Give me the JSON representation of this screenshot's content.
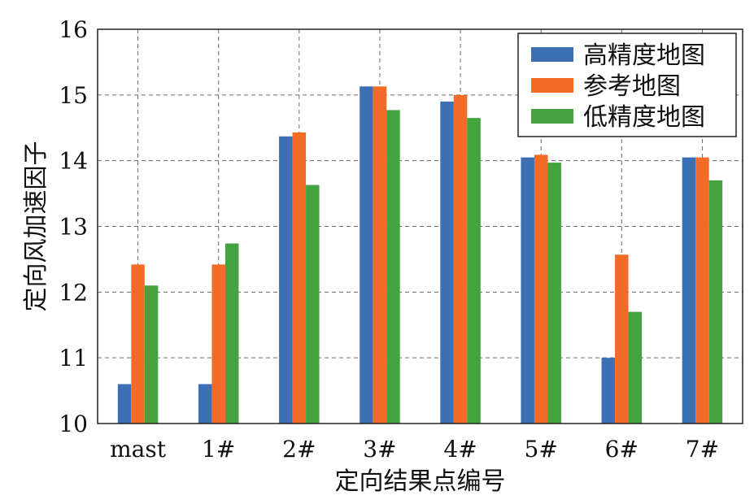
{
  "chart_data": {
    "type": "bar",
    "title": "",
    "xlabel": "定向结果点编号",
    "ylabel": "定向风加速因子",
    "categories": [
      "mast",
      "1#",
      "2#",
      "3#",
      "4#",
      "5#",
      "6#",
      "7#"
    ],
    "ylim": [
      10,
      16
    ],
    "yticks": [
      10,
      11,
      12,
      13,
      14,
      15,
      16
    ],
    "grid": true,
    "legend_position": "top-right",
    "series": [
      {
        "name": "高精度地图",
        "color": "#3d6fb4",
        "values": [
          10.6,
          10.6,
          14.37,
          15.13,
          14.9,
          14.05,
          11.0,
          14.05
        ]
      },
      {
        "name": "参考地图",
        "color": "#f26c28",
        "values": [
          12.42,
          12.42,
          14.43,
          15.13,
          15.0,
          14.09,
          12.57,
          14.05
        ]
      },
      {
        "name": "低精度地图",
        "color": "#43a33f",
        "values": [
          12.1,
          12.74,
          13.63,
          14.77,
          14.65,
          13.97,
          11.7,
          13.7
        ]
      }
    ]
  }
}
